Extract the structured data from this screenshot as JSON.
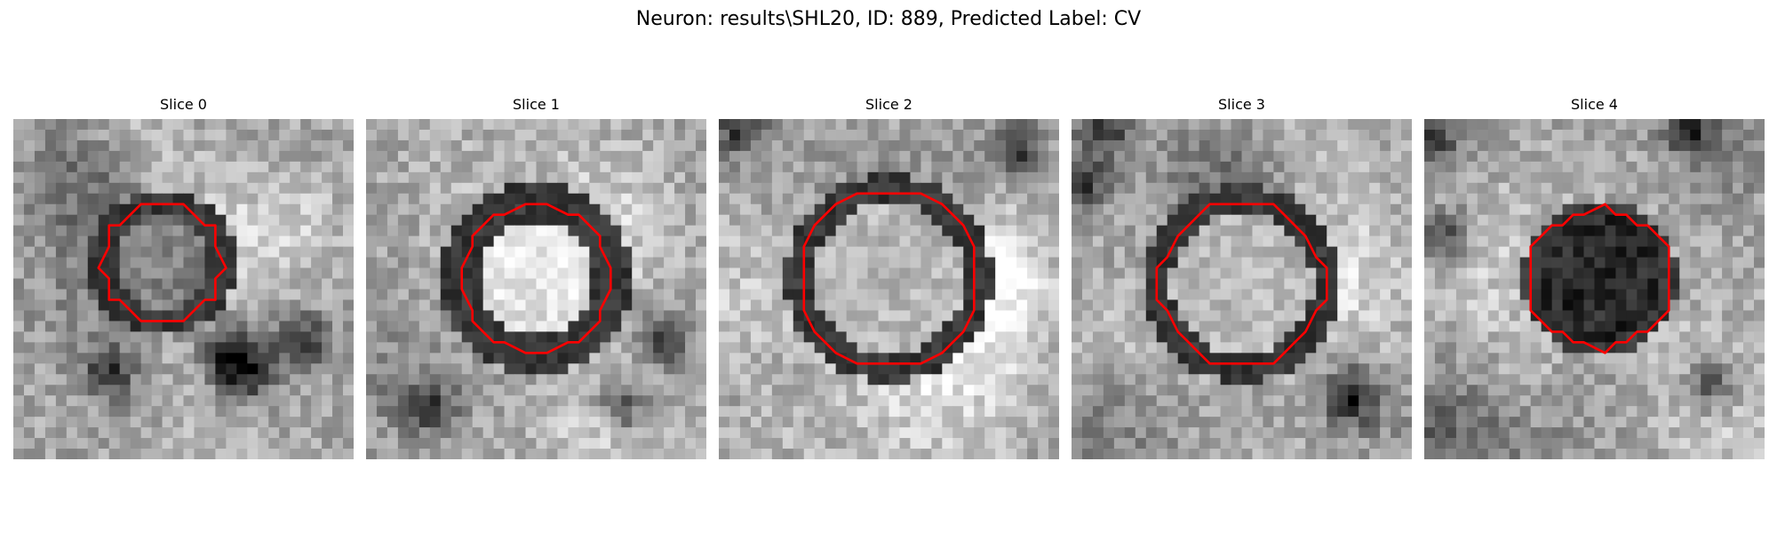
{
  "figure": {
    "title": "Neuron: results\\SHL20, ID: 889, Predicted Label: CV"
  },
  "panels": [
    {
      "title": "Slice 0",
      "center_shade": "mid",
      "ring_shade": "dark"
    },
    {
      "title": "Slice 1",
      "center_shade": "bright",
      "ring_shade": "dark"
    },
    {
      "title": "Slice 2",
      "center_shade": "light",
      "ring_shade": "dark"
    },
    {
      "title": "Slice 3",
      "center_shade": "light",
      "ring_shade": "dark"
    },
    {
      "title": "Slice 4",
      "center_shade": "dark",
      "ring_shade": "dark"
    }
  ],
  "colormap": "gray",
  "contour_color": "#ff0000"
}
